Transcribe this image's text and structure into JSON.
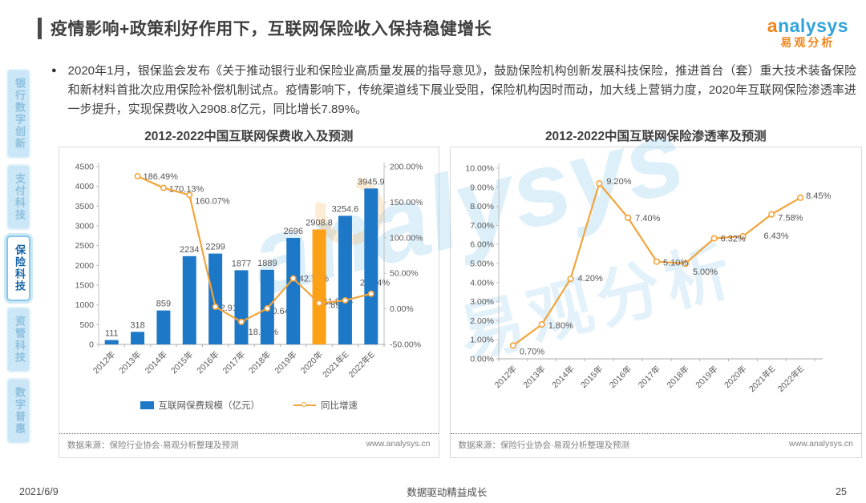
{
  "page": {
    "title": "疫情影响+政策利好作用下，互联网保险收入保持稳健增长",
    "logo": {
      "brand": "analysys",
      "brand_cn": "易观分析"
    },
    "bullet_text": "2020年1月，银保监会发布《关于推动银行业和保险业高质量发展的指导意见》，鼓励保险机构创新发展科技保险，推进首台（套）重大技术装备保险和新材料首批次应用保险补偿机制试点。疫情影响下，传统渠道线下展业受阻，保险机构因时而动，加大线上营销力度，2020年互联网保险渗透率进一步提升，实现保费收入2908.8亿元，同比增长7.89%。",
    "footer": {
      "date": "2021/6/9",
      "slogan": "数据驱动精益成长",
      "page_number": "25"
    }
  },
  "sidebar": {
    "items": [
      {
        "label": "银行数字创新",
        "active": false
      },
      {
        "label": "支付科技",
        "active": false
      },
      {
        "label": "保险科技",
        "active": true
      },
      {
        "label": "资管科技",
        "active": false
      },
      {
        "label": "数字普惠",
        "active": false
      }
    ]
  },
  "watermark": {
    "text": "analysys",
    "text_cn": "易观分析"
  },
  "chart_data": [
    {
      "type": "bar",
      "title": "2012-2022中国互联网保费收入及预测",
      "categories": [
        "2012年",
        "2013年",
        "2014年",
        "2015年",
        "2016年",
        "2017年",
        "2018年",
        "2019年",
        "2020年",
        "2021年E",
        "2022年E"
      ],
      "series": [
        {
          "name": "互联网保费规模（亿元）",
          "type": "bar",
          "axis": "left",
          "color": "#1E78C8",
          "highlight_color": "#FCA016",
          "highlight_index": 8,
          "values": [
            111,
            318,
            859,
            2234,
            2299,
            1877,
            1889,
            2696,
            2908.8,
            3254.6,
            3945.9
          ],
          "labels": [
            "111",
            "318",
            "859",
            "2234",
            "2299",
            "1877",
            "1889",
            "2696",
            "2908.8",
            "3254.6",
            "3945.9"
          ]
        },
        {
          "name": "同比增速",
          "type": "line",
          "axis": "right",
          "color": "#F2A43C",
          "values": [
            null,
            186.49,
            170.13,
            160.07,
            2.91,
            -18.36,
            0.64,
            42.72,
            7.89,
            11.89,
            21.24
          ],
          "labels": [
            "",
            "186.49%",
            "170.13%",
            "160.07%",
            "2.91%",
            "-18.36%",
            "0.64%",
            "42.72%",
            "7.89%",
            "11.89%",
            "21.24%"
          ]
        }
      ],
      "left_axis": {
        "min": 0,
        "max": 4500,
        "step": 500
      },
      "right_axis": {
        "min": -50,
        "max": 200,
        "step": 50,
        "suffix": "%"
      },
      "legend_position": "bottom",
      "grid": false,
      "source": "数据来源：保险行业协会·易观分析整理及预测",
      "website": "www.analysys.cn"
    },
    {
      "type": "line",
      "title": "2012-2022中国互联网保险渗透率及预测",
      "categories": [
        "2012年",
        "2013年",
        "2014年",
        "2015年",
        "2016年",
        "2017年",
        "2018年",
        "2019年",
        "2020年",
        "2021年E",
        "2022年E"
      ],
      "series": [
        {
          "type": "line",
          "color": "#F2A43C",
          "values": [
            0.7,
            1.8,
            4.2,
            9.2,
            7.4,
            5.1,
            5.0,
            6.32,
            6.43,
            7.58,
            8.45
          ],
          "labels": [
            "0.70%",
            "1.80%",
            "4.20%",
            "9.20%",
            "7.40%",
            "5.10%",
            "5.00%",
            "6.32%",
            "6.43%",
            "7.58%",
            "8.45%"
          ]
        }
      ],
      "y_axis": {
        "min": 0,
        "max": 10,
        "step": 1,
        "suffix": "%"
      },
      "grid": false,
      "source": "数据来源：保险行业协会·易观分析整理及预测",
      "website": "www.analysys.cn"
    }
  ]
}
